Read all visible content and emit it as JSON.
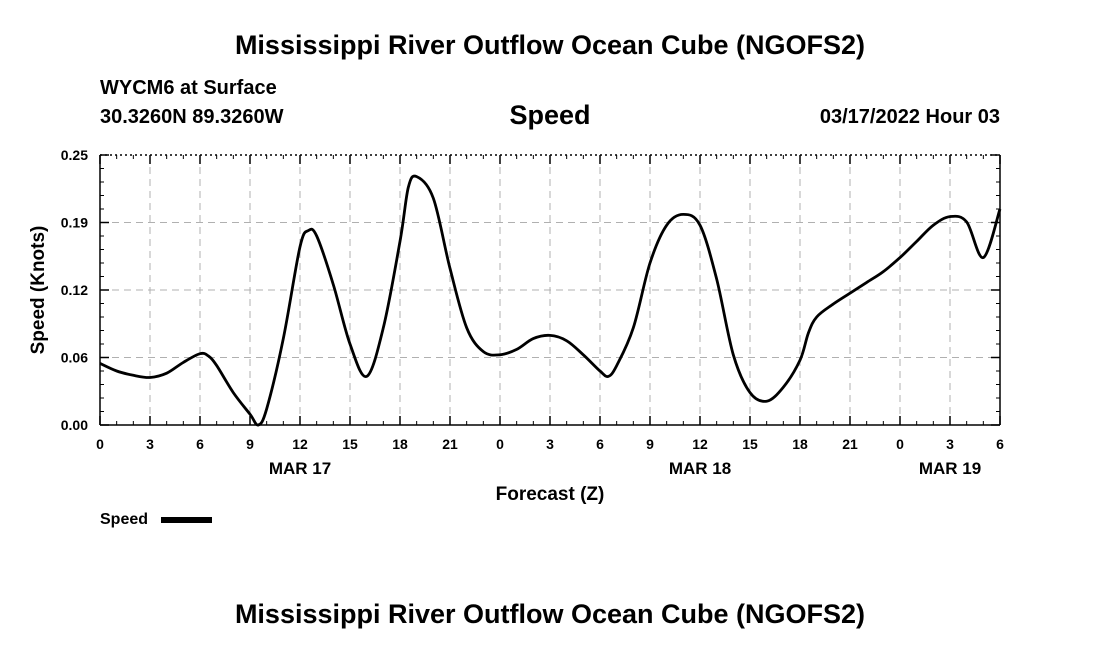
{
  "header": {
    "title": "Mississippi River Outflow Ocean Cube (NGOFS2)",
    "station": "WYCM6 at Surface",
    "coords": "30.3260N  89.3260W",
    "subtitle": "Speed",
    "datetime": "03/17/2022 Hour 03",
    "bottom_title": "Mississippi River Outflow Ocean Cube (NGOFS2)"
  },
  "chart_data": {
    "type": "line",
    "title": "Speed",
    "xlabel": "Forecast (Z)",
    "ylabel": "Speed (Knots)",
    "x_unit": "hours from 2022-03-17 00Z",
    "xlim": [
      0,
      54
    ],
    "ylim": [
      0,
      0.25
    ],
    "grid": true,
    "x_ticks": [
      {
        "h": 0,
        "label": "0"
      },
      {
        "h": 3,
        "label": "3"
      },
      {
        "h": 6,
        "label": "6"
      },
      {
        "h": 9,
        "label": "9"
      },
      {
        "h": 12,
        "label": "12"
      },
      {
        "h": 15,
        "label": "15"
      },
      {
        "h": 18,
        "label": "18"
      },
      {
        "h": 21,
        "label": "21"
      },
      {
        "h": 24,
        "label": "0"
      },
      {
        "h": 27,
        "label": "3"
      },
      {
        "h": 30,
        "label": "6"
      },
      {
        "h": 33,
        "label": "9"
      },
      {
        "h": 36,
        "label": "12"
      },
      {
        "h": 39,
        "label": "15"
      },
      {
        "h": 42,
        "label": "18"
      },
      {
        "h": 45,
        "label": "21"
      },
      {
        "h": 48,
        "label": "0"
      },
      {
        "h": 51,
        "label": "3"
      },
      {
        "h": 54,
        "label": "6"
      }
    ],
    "y_ticks": [
      {
        "v": 0.0,
        "label": "0.00"
      },
      {
        "v": 0.0625,
        "label": "0.06"
      },
      {
        "v": 0.125,
        "label": "0.12"
      },
      {
        "v": 0.1875,
        "label": "0.19"
      },
      {
        "v": 0.25,
        "label": "0.25"
      }
    ],
    "date_labels": [
      {
        "h": 12,
        "label": "MAR 17"
      },
      {
        "h": 36,
        "label": "MAR 18"
      },
      {
        "h": 51,
        "label": "MAR 19"
      }
    ],
    "legend": {
      "label": "Speed",
      "position": "bottom-left"
    },
    "series": [
      {
        "name": "Speed",
        "x": [
          0,
          1,
          2,
          3,
          4,
          5,
          6,
          6.5,
          7,
          8,
          9,
          9.5,
          10,
          11,
          12,
          12.5,
          13,
          14,
          15,
          16,
          17,
          18,
          18.5,
          19,
          20,
          21,
          22,
          23,
          24,
          25,
          26,
          27,
          28,
          29,
          30,
          30.5,
          31,
          32,
          33,
          34,
          35,
          36,
          37,
          38,
          39,
          40,
          41,
          42,
          42.5,
          43,
          44,
          45,
          46,
          47,
          48,
          49,
          50,
          51,
          52,
          53,
          54
        ],
        "values": [
          0.057,
          0.05,
          0.046,
          0.044,
          0.048,
          0.058,
          0.066,
          0.064,
          0.055,
          0.03,
          0.01,
          0.0,
          0.015,
          0.08,
          0.165,
          0.18,
          0.175,
          0.13,
          0.075,
          0.045,
          0.09,
          0.17,
          0.22,
          0.23,
          0.21,
          0.145,
          0.09,
          0.068,
          0.065,
          0.07,
          0.08,
          0.083,
          0.078,
          0.065,
          0.05,
          0.045,
          0.055,
          0.09,
          0.15,
          0.185,
          0.195,
          0.185,
          0.135,
          0.065,
          0.03,
          0.022,
          0.035,
          0.06,
          0.085,
          0.1,
          0.112,
          0.122,
          0.132,
          0.142,
          0.155,
          0.17,
          0.185,
          0.193,
          0.188,
          0.155,
          0.2
        ]
      }
    ]
  }
}
